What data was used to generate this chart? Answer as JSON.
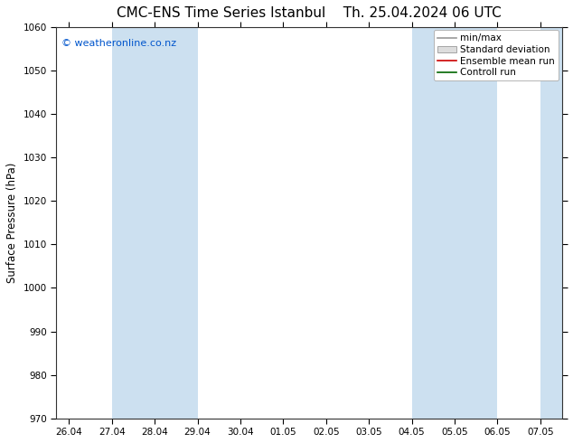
{
  "title_left": "CMC-ENS Time Series Istanbul",
  "title_right": "Th. 25.04.2024 06 UTC",
  "ylabel": "Surface Pressure (hPa)",
  "ylim": [
    970,
    1060
  ],
  "yticks": [
    970,
    980,
    990,
    1000,
    1010,
    1020,
    1030,
    1040,
    1050,
    1060
  ],
  "x_tick_labels": [
    "26.04",
    "27.04",
    "28.04",
    "29.04",
    "30.04",
    "01.05",
    "02.05",
    "03.05",
    "04.05",
    "05.05",
    "06.05",
    "07.05"
  ],
  "x_tick_positions": [
    0,
    1,
    2,
    3,
    4,
    5,
    6,
    7,
    8,
    9,
    10,
    11
  ],
  "xlim": [
    -0.3,
    11.5
  ],
  "shaded_bands": [
    {
      "xmin": 1.0,
      "xmax": 2.0
    },
    {
      "xmin": 2.0,
      "xmax": 3.0
    },
    {
      "xmin": 8.0,
      "xmax": 9.0
    },
    {
      "xmin": 9.0,
      "xmax": 10.0
    },
    {
      "xmin": 11.0,
      "xmax": 11.5
    }
  ],
  "shade_color": "#cce0f0",
  "background_color": "#ffffff",
  "watermark": "© weatheronline.co.nz",
  "watermark_color": "#0055cc",
  "legend_items": [
    {
      "label": "min/max",
      "color": "#999999",
      "type": "line"
    },
    {
      "label": "Standard deviation",
      "color": "#cccccc",
      "type": "box"
    },
    {
      "label": "Ensemble mean run",
      "color": "#cc0000",
      "type": "line"
    },
    {
      "label": "Controll run",
      "color": "#006600",
      "type": "line"
    }
  ],
  "title_fontsize": 11,
  "tick_fontsize": 7.5,
  "ylabel_fontsize": 8.5,
  "legend_fontsize": 7.5
}
